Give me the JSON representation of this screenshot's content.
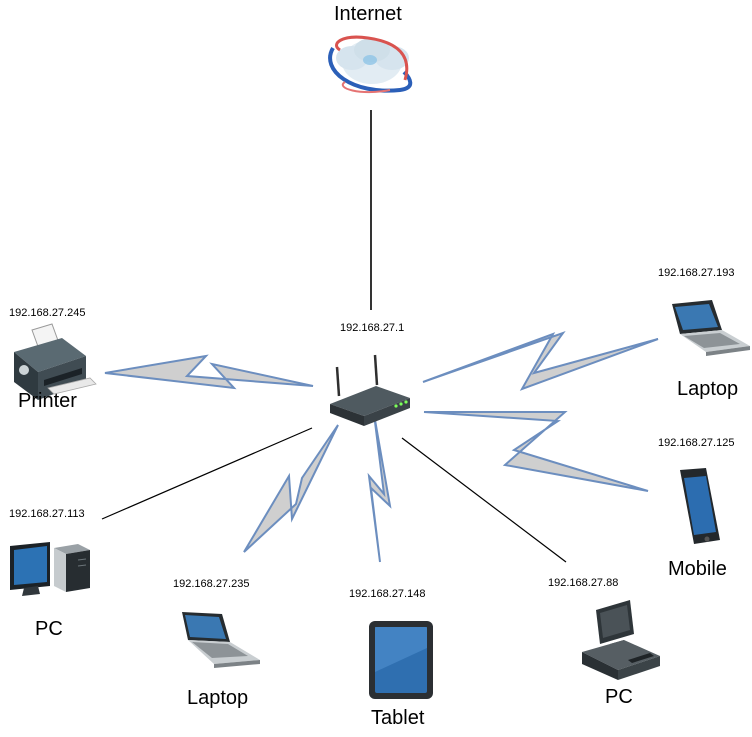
{
  "diagram": {
    "router": {
      "ip": "192.168.27.1"
    },
    "nodes": {
      "internet": {
        "label": "Internet"
      },
      "printer": {
        "label": "Printer",
        "ip": "192.168.27.245"
      },
      "pc_left": {
        "label": "PC",
        "ip": "192.168.27.113"
      },
      "laptop_bottom": {
        "label": "Laptop",
        "ip": "192.168.27.235"
      },
      "tablet": {
        "label": "Tablet",
        "ip": "192.168.27.148"
      },
      "pc_right": {
        "label": "PC",
        "ip": "192.168.27.88"
      },
      "mobile": {
        "label": "Mobile",
        "ip": "192.168.27.125"
      },
      "laptop_right": {
        "label": "Laptop",
        "ip": "192.168.27.193"
      }
    },
    "colors": {
      "wire": "#000000",
      "wireless_fill": "#cfcfcf",
      "wireless_stroke": "#6c8ebf"
    }
  }
}
